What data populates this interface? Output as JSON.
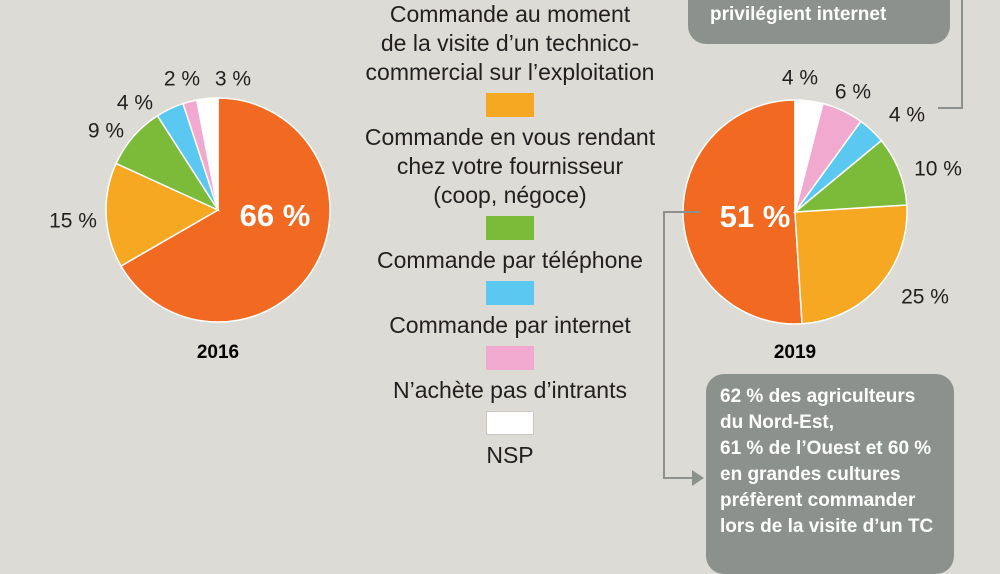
{
  "chart_data": [
    {
      "type": "pie",
      "year_label": "2016",
      "categories": [
        "Commande au moment de la visite d’un technico-commercial sur l’exploitation",
        "Commande en vous rendant chez votre fournisseur (coop, négoce)",
        "Commande par téléphone",
        "Commande par internet",
        "N’achète pas d’intrants",
        "NSP"
      ],
      "values": [
        66,
        15,
        9,
        4,
        2,
        3
      ],
      "value_labels": [
        "66 %",
        "15 %",
        "9 %",
        "4 %",
        "2 %",
        "3 %"
      ]
    },
    {
      "type": "pie",
      "year_label": "2019",
      "categories": [
        "Commande au moment de la visite d’un technico-commercial sur l’exploitation",
        "Commande en vous rendant chez votre fournisseur (coop, négoce)",
        "Commande par téléphone",
        "Commande par internet",
        "N’achète pas d’intrants",
        "NSP"
      ],
      "values": [
        51,
        25,
        10,
        4,
        6,
        4
      ],
      "value_labels": [
        "51 %",
        "25 %",
        "10 %",
        "4 %",
        "6 %",
        "4 %"
      ]
    }
  ],
  "colors": {
    "technico": "#f26a21",
    "fournisseur": "#f7a823",
    "telephone": "#7cbb3a",
    "internet": "#5ac8f0",
    "pas_intrants": "#f2a9cf",
    "nsp": "#ffffff",
    "background": "#dcdbd5",
    "note_box": "#8c918d",
    "connector": "#8c918d"
  },
  "legend": [
    {
      "label": "Commande au moment de la visite d’un technico-commercial sur l’exploitation",
      "label_lines": "Commande au moment\nde la visite d’un technico-\ncommercial sur l’exploitation",
      "color": "#f7a823"
    },
    {
      "label": "Commande en vous rendant chez votre fournisseur (coop, négoce)",
      "label_lines": "Commande en vous rendant\nchez votre fournisseur\n(coop, négoce)",
      "color": "#7cbb3a"
    },
    {
      "label": "Commande par téléphone",
      "label_lines": "Commande par téléphone",
      "color": "#5ac8f0"
    },
    {
      "label": "Commande par internet",
      "label_lines": "Commande par internet",
      "color": "#f2a9cf"
    },
    {
      "label": "N’achète pas d’intrants",
      "label_lines": "N’achète pas d’intrants",
      "color": "#ffffff"
    },
    {
      "label": "NSP",
      "label_lines": "NSP",
      "color": null
    }
  ],
  "notes": {
    "top": "privilégient internet",
    "bottom": "62 % des agriculteurs\ndu Nord-Est,\n61 % de l’Ouest et 60 %\nen grandes cultures\npréfèrent commander\nlors de la visite d’un TC"
  }
}
